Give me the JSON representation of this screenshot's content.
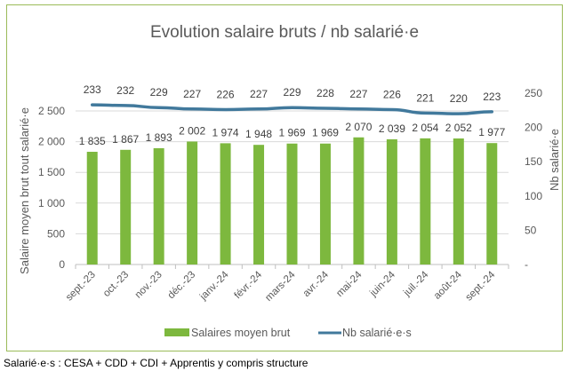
{
  "chart_data": {
    "type": "bar+line",
    "title": "Evolution salaire bruts / nb salarié·e",
    "categories": [
      "sept.-23",
      "oct.-23",
      "nov.-23",
      "déc.-23",
      "janv.-24",
      "févr.-24",
      "mars-24",
      "avr.-24",
      "mai-24",
      "juin-24",
      "juil.-24",
      "août-24",
      "sept.-24"
    ],
    "series": [
      {
        "name": "Salaires moyen brut",
        "type": "bar",
        "axis": "left",
        "color": "#7db83e",
        "values": [
          1835,
          1867,
          1893,
          2002,
          1974,
          1948,
          1969,
          1969,
          2070,
          2039,
          2054,
          2052,
          1977
        ],
        "labels": [
          "1 835",
          "1 867",
          "1 893",
          "2 002",
          "1 974",
          "1 948",
          "1 969",
          "1 969",
          "2 070",
          "2 039",
          "2 054",
          "2 052",
          "1 977"
        ]
      },
      {
        "name": "Nb salarié·e·s",
        "type": "line",
        "axis": "right",
        "color": "#41799c",
        "values": [
          233,
          232,
          229,
          227,
          226,
          227,
          229,
          228,
          227,
          226,
          221,
          220,
          223
        ],
        "labels": [
          "233",
          "232",
          "229",
          "227",
          "226",
          "227",
          "229",
          "228",
          "227",
          "226",
          "221",
          "220",
          "223"
        ]
      }
    ],
    "ylabel": "Salaire moyen brut tout salarié·e",
    "y2label": "Nb salarié·e",
    "ylim": [
      0,
      2500
    ],
    "y2lim": [
      0,
      250
    ],
    "yticks": [
      "0",
      "500",
      "1 000",
      "1 500",
      "2 000",
      "2 500"
    ],
    "y2ticks": [
      "-",
      "50",
      "100",
      "150",
      "200",
      "250"
    ],
    "grid": true,
    "legend": "bottom"
  },
  "footer": "Salarié·e·s : CESA + CDD + CDI + Apprentis y compris structure"
}
